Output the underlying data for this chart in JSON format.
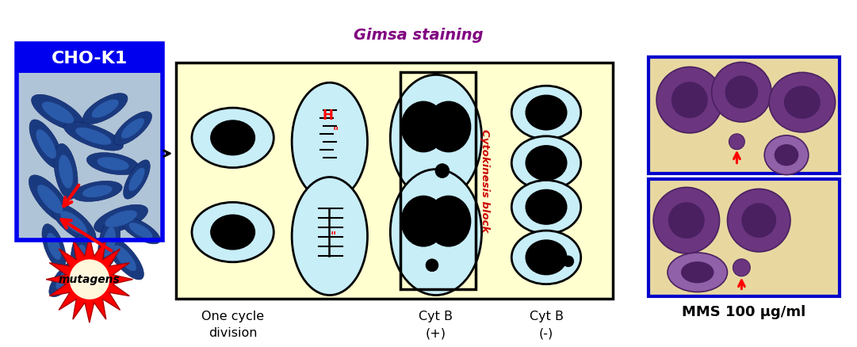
{
  "cho_label": "CHO-K1",
  "cho_bg": "#0000EE",
  "cho_text_color": "#FFFFFF",
  "gimsa_label": "Gimsa staining",
  "gimsa_color": "#800080",
  "cytokinesis_label": "Cytokinesis block",
  "cytokinesis_color": "#CC0000",
  "col1_label": "One cycle\ndivision",
  "col2_label": "Cyt B\n(+)",
  "col3_label": "Cyt B\n(-)",
  "mutagens_label": "mutagens",
  "mms_label": "MMS 100 μg/ml",
  "panel_bg": "#FFFFD0",
  "cell_fill": "#C8EEF8",
  "nucleus_fill": "#000000",
  "bg_color": "#FFFFFF",
  "photo_bg": "#E8D8A0",
  "photo_border": "#0000CC",
  "cell_purple": "#6B3580",
  "cell_purple_dark": "#4A2060"
}
